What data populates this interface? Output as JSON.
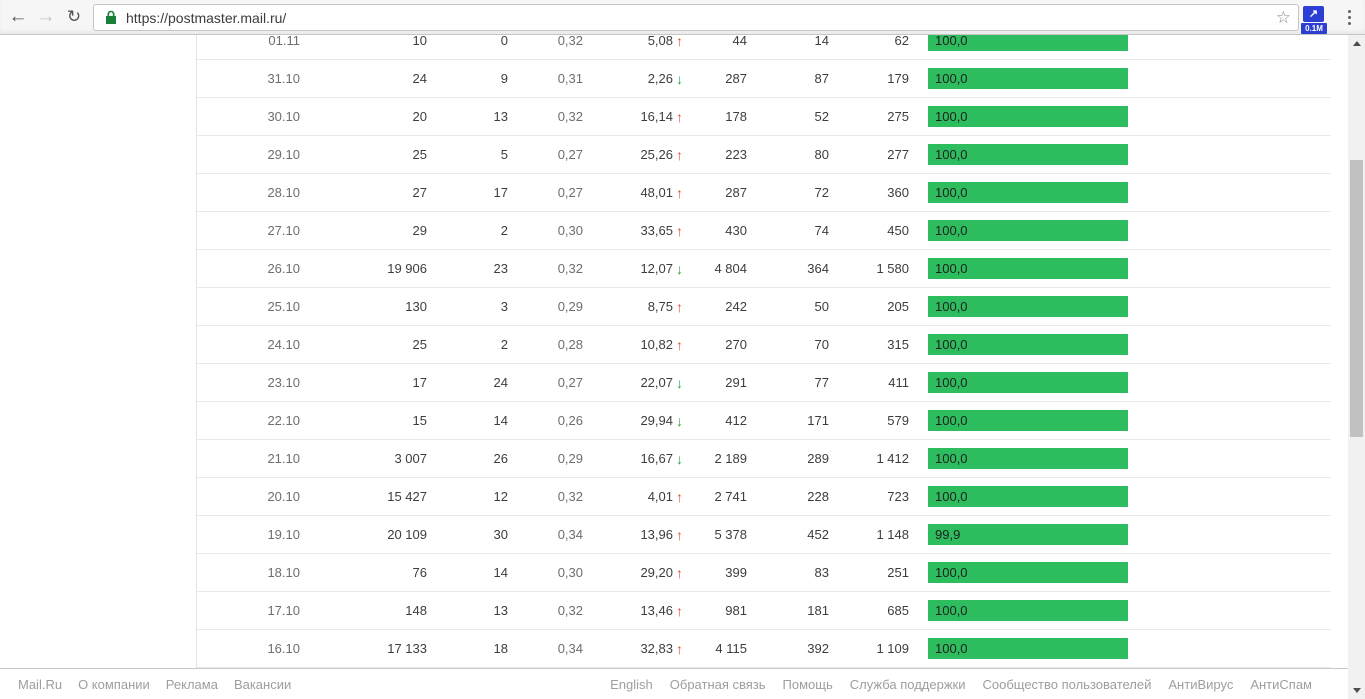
{
  "browser": {
    "url": "https://postmaster.mail.ru/",
    "extension_badge": "0.1M"
  },
  "icons": {
    "back": "←",
    "forward": "→",
    "reload": "↻",
    "star": "☆",
    "ext_arrow": "↗",
    "arrow_up": "↑",
    "arrow_down": "↓"
  },
  "colors": {
    "bar_green": "#2ebd5e",
    "arrow_red": "#e0502f",
    "arrow_green": "#27a744",
    "badge_blue": "#2c3ed3"
  },
  "table": {
    "rows": [
      {
        "date": "01.11",
        "c1": "10",
        "c2": "0",
        "c3": "0,32",
        "delta": "5,08",
        "trend": "up",
        "c5": "44",
        "c6": "14",
        "c7": "62",
        "bar_label": "100,0",
        "bar_percent": 100
      },
      {
        "date": "31.10",
        "c1": "24",
        "c2": "9",
        "c3": "0,31",
        "delta": "2,26",
        "trend": "down",
        "c5": "287",
        "c6": "87",
        "c7": "179",
        "bar_label": "100,0",
        "bar_percent": 100
      },
      {
        "date": "30.10",
        "c1": "20",
        "c2": "13",
        "c3": "0,32",
        "delta": "16,14",
        "trend": "up",
        "c5": "178",
        "c6": "52",
        "c7": "275",
        "bar_label": "100,0",
        "bar_percent": 100
      },
      {
        "date": "29.10",
        "c1": "25",
        "c2": "5",
        "c3": "0,27",
        "delta": "25,26",
        "trend": "up",
        "c5": "223",
        "c6": "80",
        "c7": "277",
        "bar_label": "100,0",
        "bar_percent": 100
      },
      {
        "date": "28.10",
        "c1": "27",
        "c2": "17",
        "c3": "0,27",
        "delta": "48,01",
        "trend": "up",
        "c5": "287",
        "c6": "72",
        "c7": "360",
        "bar_label": "100,0",
        "bar_percent": 100
      },
      {
        "date": "27.10",
        "c1": "29",
        "c2": "2",
        "c3": "0,30",
        "delta": "33,65",
        "trend": "up",
        "c5": "430",
        "c6": "74",
        "c7": "450",
        "bar_label": "100,0",
        "bar_percent": 100
      },
      {
        "date": "26.10",
        "c1": "19 906",
        "c2": "23",
        "c3": "0,32",
        "delta": "12,07",
        "trend": "down",
        "c5": "4 804",
        "c6": "364",
        "c7": "1 580",
        "bar_label": "100,0",
        "bar_percent": 100
      },
      {
        "date": "25.10",
        "c1": "130",
        "c2": "3",
        "c3": "0,29",
        "delta": "8,75",
        "trend": "up",
        "c5": "242",
        "c6": "50",
        "c7": "205",
        "bar_label": "100,0",
        "bar_percent": 100
      },
      {
        "date": "24.10",
        "c1": "25",
        "c2": "2",
        "c3": "0,28",
        "delta": "10,82",
        "trend": "up",
        "c5": "270",
        "c6": "70",
        "c7": "315",
        "bar_label": "100,0",
        "bar_percent": 100
      },
      {
        "date": "23.10",
        "c1": "17",
        "c2": "24",
        "c3": "0,27",
        "delta": "22,07",
        "trend": "down",
        "c5": "291",
        "c6": "77",
        "c7": "411",
        "bar_label": "100,0",
        "bar_percent": 100
      },
      {
        "date": "22.10",
        "c1": "15",
        "c2": "14",
        "c3": "0,26",
        "delta": "29,94",
        "trend": "down",
        "c5": "412",
        "c6": "171",
        "c7": "579",
        "bar_label": "100,0",
        "bar_percent": 100
      },
      {
        "date": "21.10",
        "c1": "3 007",
        "c2": "26",
        "c3": "0,29",
        "delta": "16,67",
        "trend": "down",
        "c5": "2 189",
        "c6": "289",
        "c7": "1 412",
        "bar_label": "100,0",
        "bar_percent": 100
      },
      {
        "date": "20.10",
        "c1": "15 427",
        "c2": "12",
        "c3": "0,32",
        "delta": "4,01",
        "trend": "up",
        "c5": "2 741",
        "c6": "228",
        "c7": "723",
        "bar_label": "100,0",
        "bar_percent": 100
      },
      {
        "date": "19.10",
        "c1": "20 109",
        "c2": "30",
        "c3": "0,34",
        "delta": "13,96",
        "trend": "up",
        "c5": "5 378",
        "c6": "452",
        "c7": "1 148",
        "bar_label": "99,9",
        "bar_percent": 99.9
      },
      {
        "date": "18.10",
        "c1": "76",
        "c2": "14",
        "c3": "0,30",
        "delta": "29,20",
        "trend": "up",
        "c5": "399",
        "c6": "83",
        "c7": "251",
        "bar_label": "100,0",
        "bar_percent": 100
      },
      {
        "date": "17.10",
        "c1": "148",
        "c2": "13",
        "c3": "0,32",
        "delta": "13,46",
        "trend": "up",
        "c5": "981",
        "c6": "181",
        "c7": "685",
        "bar_label": "100,0",
        "bar_percent": 100
      },
      {
        "date": "16.10",
        "c1": "17 133",
        "c2": "18",
        "c3": "0,34",
        "delta": "32,83",
        "trend": "up",
        "c5": "4 115",
        "c6": "392",
        "c7": "1 109",
        "bar_label": "100,0",
        "bar_percent": 100
      }
    ]
  },
  "footer": {
    "left": [
      "Mail.Ru",
      "О компании",
      "Реклама",
      "Вакансии"
    ],
    "right": [
      "English",
      "Обратная связь",
      "Помощь",
      "Служба поддержки",
      "Сообщество пользователей",
      "АнтиВирус",
      "АнтиСпам"
    ]
  }
}
